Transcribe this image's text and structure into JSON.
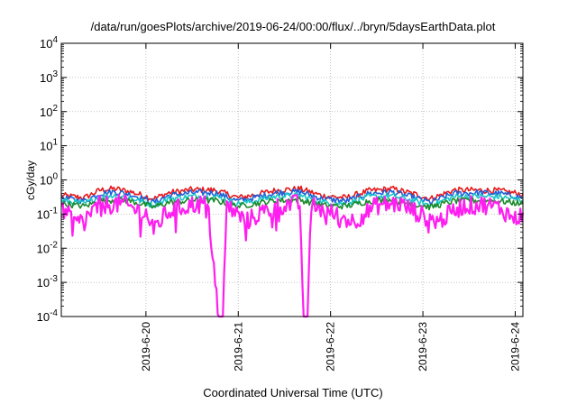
{
  "chart_data": {
    "type": "line",
    "title": "/data/run/goesPlots/archive/2019-06-24/00:00/flux/../bryn/5daysEarthData.plot",
    "xlabel": "Coordinated Universal Time (UTC)",
    "ylabel": "cGy/day",
    "yscale": "log",
    "ylim": [
      0.0001,
      10000
    ],
    "xlim": [
      "2019-06-19 02:00",
      "2019-06-24 02:00"
    ],
    "grid": true,
    "legend": "none",
    "y_ticks": [
      {
        "base": "10",
        "exp": "-4",
        "value": 0.0001
      },
      {
        "base": "10",
        "exp": "-3",
        "value": 0.001
      },
      {
        "base": "10",
        "exp": "-2",
        "value": 0.01
      },
      {
        "base": "10",
        "exp": "-1",
        "value": 0.1
      },
      {
        "base": "10",
        "exp": "0",
        "value": 1
      },
      {
        "base": "10",
        "exp": "1",
        "value": 10
      },
      {
        "base": "10",
        "exp": "2",
        "value": 100
      },
      {
        "base": "10",
        "exp": "3",
        "value": 1000
      },
      {
        "base": "10",
        "exp": "4",
        "value": 10000
      }
    ],
    "x_ticks": [
      {
        "label": "2019-6-20",
        "value": "2019-06-20 00:00"
      },
      {
        "label": "2019-6-21",
        "value": "2019-06-21 00:00"
      },
      {
        "label": "2019-6-22",
        "value": "2019-06-22 00:00"
      },
      {
        "label": "2019-6-23",
        "value": "2019-06-23 00:00"
      },
      {
        "label": "2019-6-24",
        "value": "2019-06-24 00:00"
      }
    ],
    "series": [
      {
        "color": "#e8181a",
        "values": [
          [
            "2019-06-19 02:00",
            0.35
          ],
          [
            "2019-06-19 08:00",
            0.3
          ],
          [
            "2019-06-19 12:00",
            0.5
          ],
          [
            "2019-06-19 16:00",
            0.55
          ],
          [
            "2019-06-19 20:00",
            0.45
          ],
          [
            "2019-06-20 02:00",
            0.28
          ],
          [
            "2019-06-20 06:00",
            0.42
          ],
          [
            "2019-06-20 12:00",
            0.52
          ],
          [
            "2019-06-20 18:00",
            0.5
          ],
          [
            "2019-06-21 00:00",
            0.3
          ],
          [
            "2019-06-21 04:00",
            0.36
          ],
          [
            "2019-06-21 10:00",
            0.5
          ],
          [
            "2019-06-21 16:00",
            0.55
          ],
          [
            "2019-06-21 22:00",
            0.34
          ],
          [
            "2019-06-22 04:00",
            0.3
          ],
          [
            "2019-06-22 10:00",
            0.48
          ],
          [
            "2019-06-22 16:00",
            0.55
          ],
          [
            "2019-06-22 22:00",
            0.38
          ],
          [
            "2019-06-23 02:00",
            0.28
          ],
          [
            "2019-06-23 08:00",
            0.5
          ],
          [
            "2019-06-23 14:00",
            0.5
          ],
          [
            "2019-06-23 20:00",
            0.48
          ],
          [
            "2019-06-24 02:00",
            0.38
          ]
        ]
      },
      {
        "color": "#1f5fd9",
        "values": [
          [
            "2019-06-19 02:00",
            0.3
          ],
          [
            "2019-06-19 08:00",
            0.24
          ],
          [
            "2019-06-19 12:00",
            0.4
          ],
          [
            "2019-06-19 16:00",
            0.45
          ],
          [
            "2019-06-19 20:00",
            0.38
          ],
          [
            "2019-06-20 02:00",
            0.22
          ],
          [
            "2019-06-20 06:00",
            0.35
          ],
          [
            "2019-06-20 12:00",
            0.42
          ],
          [
            "2019-06-20 18:00",
            0.42
          ],
          [
            "2019-06-21 00:00",
            0.24
          ],
          [
            "2019-06-21 04:00",
            0.3
          ],
          [
            "2019-06-21 10:00",
            0.42
          ],
          [
            "2019-06-21 16:00",
            0.45
          ],
          [
            "2019-06-21 22:00",
            0.28
          ],
          [
            "2019-06-22 04:00",
            0.24
          ],
          [
            "2019-06-22 10:00",
            0.4
          ],
          [
            "2019-06-22 16:00",
            0.44
          ],
          [
            "2019-06-22 22:00",
            0.3
          ],
          [
            "2019-06-23 02:00",
            0.22
          ],
          [
            "2019-06-23 08:00",
            0.4
          ],
          [
            "2019-06-23 14:00",
            0.42
          ],
          [
            "2019-06-23 20:00",
            0.4
          ],
          [
            "2019-06-24 02:00",
            0.3
          ]
        ]
      },
      {
        "color": "#19c6c6",
        "values": [
          [
            "2019-06-19 02:00",
            0.25
          ],
          [
            "2019-06-19 08:00",
            0.2
          ],
          [
            "2019-06-19 12:00",
            0.32
          ],
          [
            "2019-06-19 16:00",
            0.35
          ],
          [
            "2019-06-19 20:00",
            0.3
          ],
          [
            "2019-06-20 02:00",
            0.18
          ],
          [
            "2019-06-20 06:00",
            0.28
          ],
          [
            "2019-06-20 12:00",
            0.33
          ],
          [
            "2019-06-20 18:00",
            0.33
          ],
          [
            "2019-06-21 00:00",
            0.2
          ],
          [
            "2019-06-21 04:00",
            0.24
          ],
          [
            "2019-06-21 10:00",
            0.33
          ],
          [
            "2019-06-21 16:00",
            0.35
          ],
          [
            "2019-06-21 22:00",
            0.22
          ],
          [
            "2019-06-22 04:00",
            0.2
          ],
          [
            "2019-06-22 10:00",
            0.32
          ],
          [
            "2019-06-22 16:00",
            0.34
          ],
          [
            "2019-06-22 22:00",
            0.24
          ],
          [
            "2019-06-23 02:00",
            0.18
          ],
          [
            "2019-06-23 08:00",
            0.32
          ],
          [
            "2019-06-23 14:00",
            0.33
          ],
          [
            "2019-06-23 20:00",
            0.32
          ],
          [
            "2019-06-24 02:00",
            0.25
          ]
        ]
      },
      {
        "color": "#1a8a2a",
        "values": [
          [
            "2019-06-19 02:00",
            0.2
          ],
          [
            "2019-06-19 08:00",
            0.17
          ],
          [
            "2019-06-19 12:00",
            0.24
          ],
          [
            "2019-06-19 16:00",
            0.26
          ],
          [
            "2019-06-19 20:00",
            0.24
          ],
          [
            "2019-06-20 02:00",
            0.16
          ],
          [
            "2019-06-20 06:00",
            0.22
          ],
          [
            "2019-06-20 12:00",
            0.25
          ],
          [
            "2019-06-20 18:00",
            0.25
          ],
          [
            "2019-06-21 00:00",
            0.17
          ],
          [
            "2019-06-21 04:00",
            0.2
          ],
          [
            "2019-06-21 10:00",
            0.25
          ],
          [
            "2019-06-21 16:00",
            0.26
          ],
          [
            "2019-06-21 22:00",
            0.18
          ],
          [
            "2019-06-22 04:00",
            0.17
          ],
          [
            "2019-06-22 10:00",
            0.24
          ],
          [
            "2019-06-22 16:00",
            0.26
          ],
          [
            "2019-06-22 22:00",
            0.19
          ],
          [
            "2019-06-23 02:00",
            0.16
          ],
          [
            "2019-06-23 08:00",
            0.24
          ],
          [
            "2019-06-23 14:00",
            0.25
          ],
          [
            "2019-06-23 20:00",
            0.24
          ],
          [
            "2019-06-24 02:00",
            0.2
          ]
        ]
      },
      {
        "color": "#ff1ef0",
        "values": [
          [
            "2019-06-19 02:00",
            0.15
          ],
          [
            "2019-06-19 06:00",
            0.05
          ],
          [
            "2019-06-19 09:00",
            0.09
          ],
          [
            "2019-06-19 12:00",
            0.18
          ],
          [
            "2019-06-19 18:00",
            0.2
          ],
          [
            "2019-06-20 00:00",
            0.1
          ],
          [
            "2019-06-20 02:00",
            0.04
          ],
          [
            "2019-06-20 06:00",
            0.12
          ],
          [
            "2019-06-20 12:00",
            0.19
          ],
          [
            "2019-06-20 16:00",
            0.2
          ],
          [
            "2019-06-20 19:00",
            0.0001
          ],
          [
            "2019-06-20 20:00",
            0.0001
          ],
          [
            "2019-06-20 21:00",
            0.18
          ],
          [
            "2019-06-21 02:00",
            0.06
          ],
          [
            "2019-06-21 06:00",
            0.11
          ],
          [
            "2019-06-21 12:00",
            0.19
          ],
          [
            "2019-06-21 16:00",
            0.2
          ],
          [
            "2019-06-21 17:00",
            0.0001
          ],
          [
            "2019-06-21 18:00",
            0.0001
          ],
          [
            "2019-06-21 19:00",
            0.18
          ],
          [
            "2019-06-22 02:00",
            0.09
          ],
          [
            "2019-06-22 06:00",
            0.06
          ],
          [
            "2019-06-22 12:00",
            0.18
          ],
          [
            "2019-06-22 18:00",
            0.2
          ],
          [
            "2019-06-23 00:00",
            0.09
          ],
          [
            "2019-06-23 04:00",
            0.06
          ],
          [
            "2019-06-23 10:00",
            0.17
          ],
          [
            "2019-06-23 16:00",
            0.19
          ],
          [
            "2019-06-23 20:00",
            0.15
          ],
          [
            "2019-06-24 00:00",
            0.07
          ],
          [
            "2019-06-24 02:00",
            0.11
          ]
        ]
      }
    ]
  }
}
